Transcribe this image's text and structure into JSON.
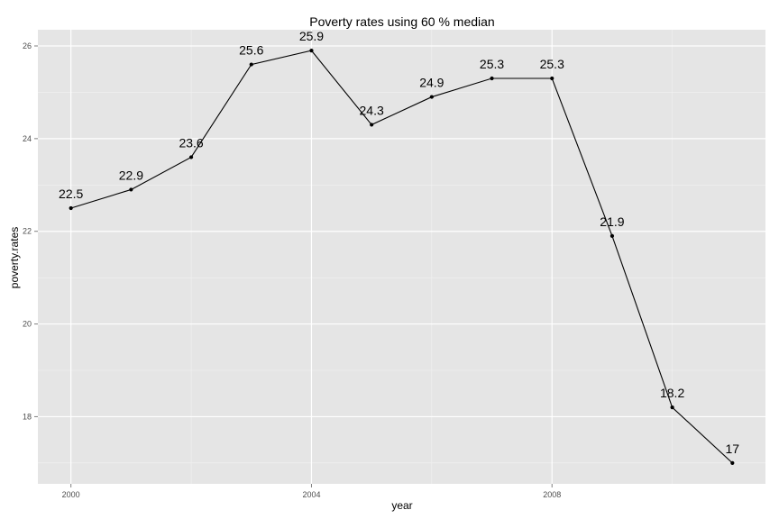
{
  "chart_data": {
    "type": "line",
    "title": "Poverty rates using 60 % median",
    "xlabel": "year",
    "ylabel": "poverty.rates",
    "x": [
      2000,
      2001,
      2002,
      2003,
      2004,
      2005,
      2006,
      2007,
      2008,
      2009,
      2010,
      2011
    ],
    "series": [
      {
        "values": [
          22.5,
          22.9,
          23.6,
          25.6,
          25.9,
          24.3,
          24.9,
          25.3,
          25.3,
          21.9,
          18.2,
          17
        ]
      }
    ],
    "data_labels": [
      "22.5",
      "22.9",
      "23.6",
      "25.6",
      "25.9",
      "24.3",
      "24.9",
      "25.3",
      "25.3",
      "21.9",
      "18.2",
      "17"
    ],
    "xlim": [
      1999.45,
      2011.55
    ],
    "ylim": [
      16.55,
      26.35
    ],
    "x_ticks": [
      2000,
      2004,
      2008
    ],
    "x_tick_labels": [
      "2000",
      "2004",
      "2008"
    ],
    "y_ticks": [
      18,
      20,
      22,
      24,
      26
    ],
    "y_tick_labels": [
      "18",
      "20",
      "22",
      "24",
      "26"
    ],
    "grid": true,
    "legend": "none",
    "colors": {
      "panel": "#e5e5e5",
      "grid": "#ffffff",
      "line": "#000000",
      "point": "#000000"
    }
  }
}
